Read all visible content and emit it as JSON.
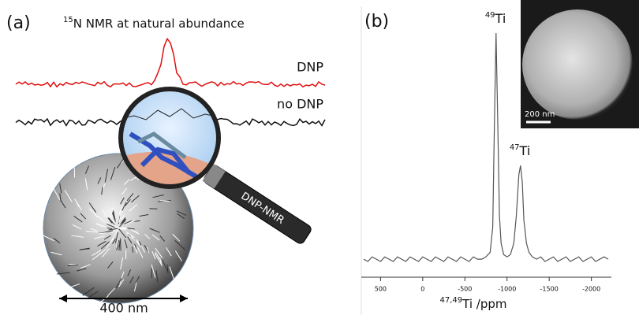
{
  "figure": {
    "panel_a_label": "(a)",
    "panel_b_label": "(b)",
    "nmr_title": {
      "sup": "15",
      "text": "N NMR at natural abundance"
    },
    "dnp_label": "DNP",
    "no_dnp_label": "no DNP",
    "handle_label": "DNP-NMR",
    "scale_a": "400 nm",
    "scale_inset": "200 nm"
  },
  "chart_data": {
    "type": "line",
    "color": "#555555",
    "xlabel": {
      "sup": "47,49",
      "text": "Ti /ppm"
    },
    "x": [
      700,
      650,
      600,
      550,
      500,
      450,
      400,
      350,
      300,
      250,
      200,
      150,
      100,
      50,
      0,
      -50,
      -100,
      -150,
      -200,
      -250,
      -300,
      -350,
      -400,
      -450,
      -500,
      -550,
      -600,
      -650,
      -700,
      -750,
      -800,
      -830,
      -850,
      -870,
      -890,
      -910,
      -930,
      -960,
      -1000,
      -1040,
      -1080,
      -1110,
      -1140,
      -1160,
      -1180,
      -1200,
      -1230,
      -1260,
      -1300,
      -1350,
      -1400,
      -1450,
      -1500,
      -1550,
      -1600,
      -1650,
      -1700,
      -1750,
      -1800,
      -1850,
      -1900,
      -1950,
      -2000,
      -2050,
      -2100,
      -2150,
      -2200
    ],
    "values": [
      1,
      0,
      2,
      1,
      0,
      2,
      1,
      0,
      2,
      1,
      0,
      2,
      1,
      0,
      2,
      1,
      0,
      2,
      1,
      0,
      2,
      1,
      0,
      2,
      1,
      0,
      2,
      1,
      1,
      2,
      4,
      15,
      60,
      100,
      60,
      20,
      8,
      3,
      2,
      3,
      8,
      20,
      38,
      42,
      35,
      18,
      8,
      4,
      2,
      1,
      2,
      0,
      1,
      2,
      0,
      1,
      2,
      0,
      1,
      2,
      0,
      1,
      2,
      0,
      1,
      2,
      1
    ],
    "xlim": [
      700,
      -2200
    ],
    "xticks": [
      500,
      0,
      -500,
      -1000,
      -1500,
      -2000
    ],
    "annotations": [
      {
        "sup": "49",
        "text": "Ti",
        "x": -870,
        "y": 100
      },
      {
        "sup": "47",
        "text": "Ti",
        "x": -1160,
        "y": 42
      }
    ]
  }
}
